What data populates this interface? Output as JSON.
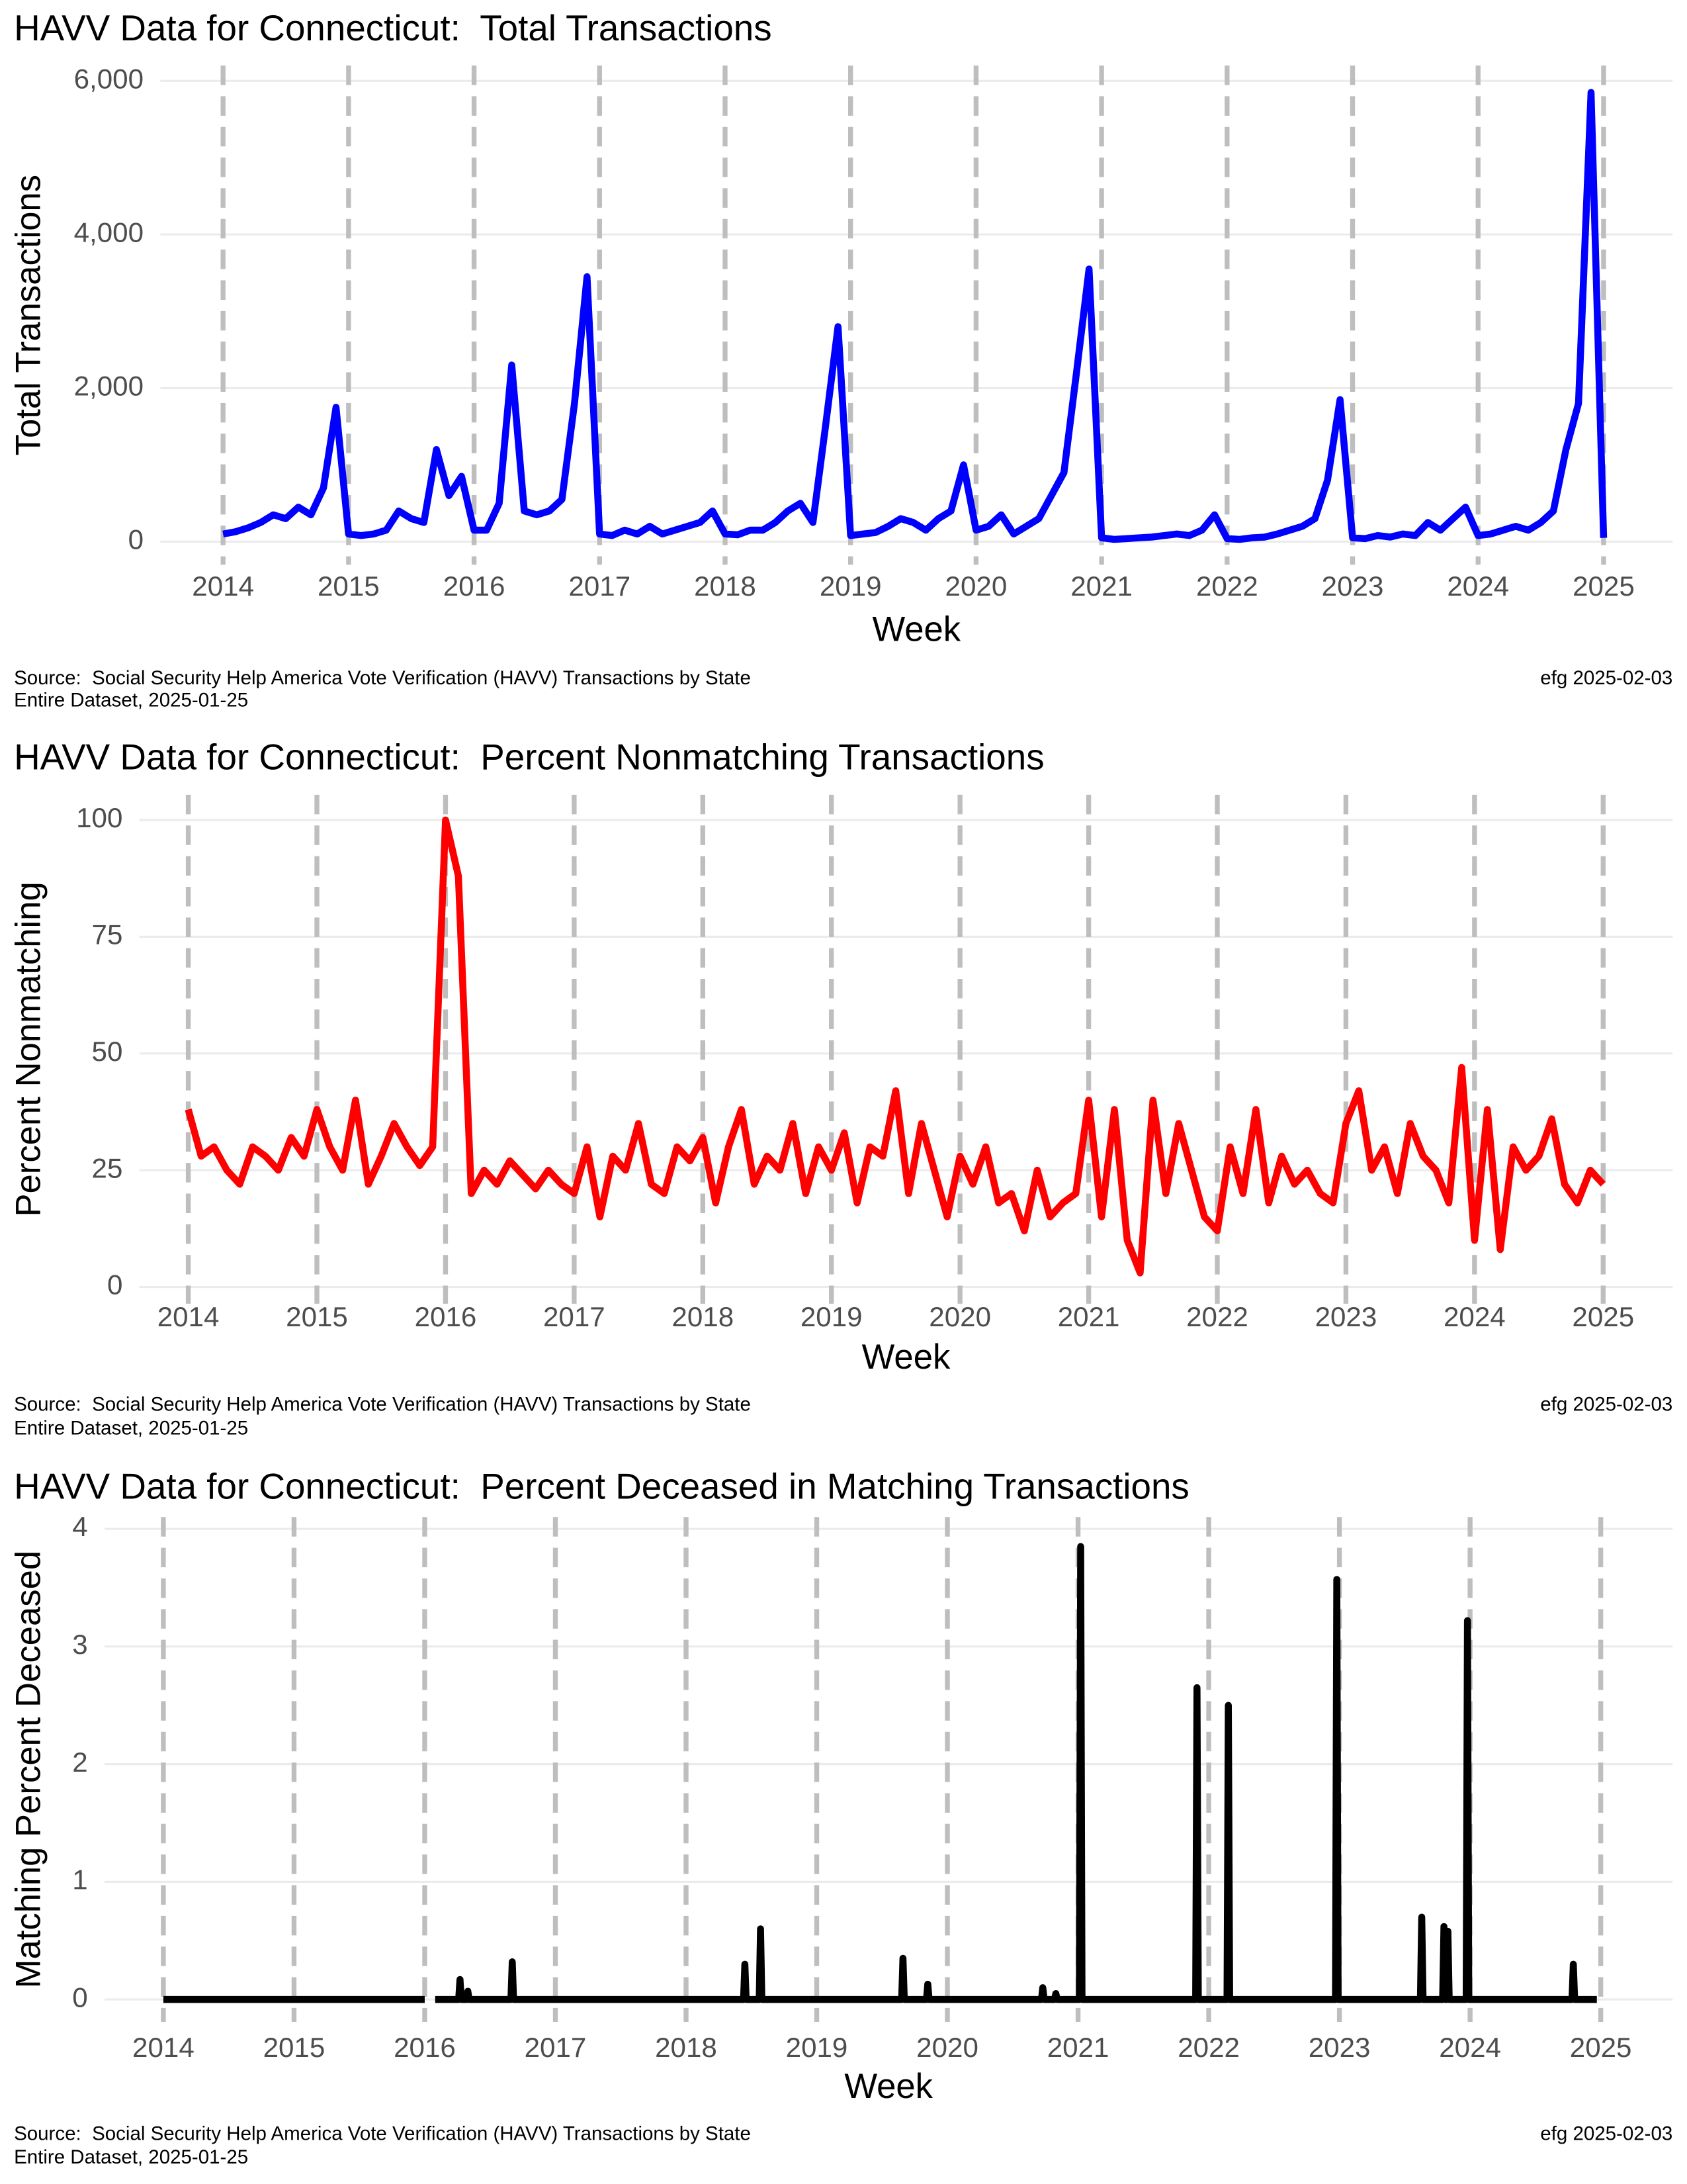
{
  "chart_data": [
    {
      "type": "line",
      "title": "HAVV Data for Connecticut:  Total Transactions",
      "x_label": "Week",
      "y_label": "Total Transactions",
      "caption": [
        "Source:  Social Security Help America Vote Verification (HAVV) Transactions by State",
        "Entire Dataset, 2025-01-25"
      ],
      "stamp": "efg 2025-02-03",
      "color": "#0000ff",
      "grid": true,
      "xlim": [
        2013.5,
        2025.55
      ],
      "xticks": [
        2014,
        2015,
        2016,
        2017,
        2018,
        2019,
        2020,
        2021,
        2022,
        2023,
        2024,
        2025
      ],
      "ylim": [
        -300,
        6200
      ],
      "yticks": [
        0,
        {
          "value": 2000,
          "label": "2,000"
        },
        {
          "value": 4000,
          "label": "4,000"
        },
        {
          "value": 6000,
          "label": "6,000"
        }
      ],
      "x": [
        2014,
        2014.1,
        2014.2,
        2014.3,
        2014.4,
        2014.5,
        2014.6,
        2014.7,
        2014.8,
        2014.9,
        2015,
        2015.1,
        2015.2,
        2015.3,
        2015.4,
        2015.5,
        2015.6,
        2015.7,
        2015.8,
        2015.9,
        2016,
        2016.1,
        2016.2,
        2016.3,
        2016.4,
        2016.5,
        2016.6,
        2016.7,
        2016.8,
        2016.9,
        2017,
        2017.1,
        2017.2,
        2017.3,
        2017.4,
        2017.5,
        2017.6,
        2017.7,
        2017.8,
        2017.9,
        2018,
        2018.1,
        2018.2,
        2018.3,
        2018.4,
        2018.5,
        2018.6,
        2018.7,
        2018.8,
        2018.9,
        2019,
        2019.1,
        2019.2,
        2019.3,
        2019.4,
        2019.5,
        2019.6,
        2019.7,
        2019.8,
        2019.9,
        2020,
        2020.1,
        2020.2,
        2020.3,
        2020.4,
        2020.5,
        2020.6,
        2020.7,
        2020.8,
        2020.9,
        2021,
        2021.1,
        2021.2,
        2021.3,
        2021.4,
        2021.5,
        2021.6,
        2021.7,
        2021.8,
        2021.9,
        2022,
        2022.1,
        2022.2,
        2022.3,
        2022.4,
        2022.5,
        2022.6,
        2022.7,
        2022.8,
        2022.9,
        2023,
        2023.1,
        2023.2,
        2023.3,
        2023.4,
        2023.5,
        2023.6,
        2023.7,
        2023.8,
        2023.9,
        2024,
        2024.1,
        2024.2,
        2024.3,
        2024.4,
        2024.5,
        2024.6,
        2024.7,
        2024.8,
        2024.9,
        2025
      ],
      "values": [
        100,
        130,
        180,
        250,
        350,
        300,
        450,
        350,
        700,
        1750,
        100,
        80,
        100,
        150,
        400,
        300,
        250,
        1200,
        600,
        850,
        150,
        150,
        500,
        2300,
        400,
        350,
        400,
        550,
        1800,
        3450,
        100,
        80,
        150,
        100,
        200,
        100,
        150,
        200,
        250,
        400,
        100,
        90,
        150,
        150,
        250,
        400,
        500,
        250,
        1500,
        2800,
        80,
        100,
        120,
        200,
        300,
        250,
        150,
        300,
        400,
        1000,
        150,
        200,
        350,
        100,
        200,
        300,
        600,
        900,
        2200,
        3550,
        50,
        30,
        40,
        50,
        60,
        80,
        100,
        80,
        150,
        350,
        40,
        30,
        50,
        60,
        100,
        150,
        200,
        300,
        800,
        1850,
        50,
        40,
        80,
        60,
        100,
        80,
        250,
        150,
        300,
        450,
        80,
        100,
        150,
        200,
        150,
        250,
        400,
        1200,
        1800,
        5850,
        50
      ]
    },
    {
      "type": "line",
      "title": "HAVV Data for Connecticut:  Percent Nonmatching Transactions",
      "x_label": "Week",
      "y_label": "Percent Nonmatching",
      "caption": [
        "Source:  Social Security Help America Vote Verification (HAVV) Transactions by State",
        "Entire Dataset, 2025-01-25"
      ],
      "stamp": "efg 2025-02-03",
      "color": "#ff0000",
      "grid": true,
      "xlim": [
        2013.62,
        2025.54
      ],
      "xticks": [
        2014,
        2015,
        2016,
        2017,
        2018,
        2019,
        2020,
        2021,
        2022,
        2023,
        2024,
        2025
      ],
      "ylim": [
        -3.6,
        105.4
      ],
      "yticks": [
        0,
        25,
        50,
        75,
        100
      ],
      "x": [
        2014,
        2014.1,
        2014.2,
        2014.3,
        2014.4,
        2014.5,
        2014.6,
        2014.7,
        2014.8,
        2014.9,
        2015,
        2015.1,
        2015.2,
        2015.3,
        2015.4,
        2015.5,
        2015.6,
        2015.7,
        2015.8,
        2015.9,
        2016,
        2016.1,
        2016.2,
        2016.3,
        2016.4,
        2016.5,
        2016.6,
        2016.7,
        2016.8,
        2016.9,
        2017,
        2017.1,
        2017.2,
        2017.3,
        2017.4,
        2017.5,
        2017.6,
        2017.7,
        2017.8,
        2017.9,
        2018,
        2018.1,
        2018.2,
        2018.3,
        2018.4,
        2018.5,
        2018.6,
        2018.7,
        2018.8,
        2018.9,
        2019,
        2019.1,
        2019.2,
        2019.3,
        2019.4,
        2019.5,
        2019.6,
        2019.7,
        2019.8,
        2019.9,
        2020,
        2020.1,
        2020.2,
        2020.3,
        2020.4,
        2020.5,
        2020.6,
        2020.7,
        2020.8,
        2020.9,
        2021,
        2021.1,
        2021.2,
        2021.3,
        2021.4,
        2021.5,
        2021.6,
        2021.7,
        2021.8,
        2021.9,
        2022,
        2022.1,
        2022.2,
        2022.3,
        2022.4,
        2022.5,
        2022.6,
        2022.7,
        2022.8,
        2022.9,
        2023,
        2023.1,
        2023.2,
        2023.3,
        2023.4,
        2023.5,
        2023.6,
        2023.7,
        2023.8,
        2023.9,
        2024,
        2024.1,
        2024.2,
        2024.3,
        2024.4,
        2024.5,
        2024.6,
        2024.7,
        2024.8,
        2024.9,
        2025
      ],
      "values": [
        38,
        28,
        30,
        25,
        22,
        30,
        28,
        25,
        32,
        28,
        38,
        30,
        25,
        40,
        22,
        28,
        35,
        30,
        26,
        30,
        100,
        88,
        20,
        25,
        22,
        27,
        24,
        21,
        25,
        22,
        20,
        30,
        15,
        28,
        25,
        35,
        22,
        20,
        30,
        27,
        32,
        18,
        30,
        38,
        22,
        28,
        25,
        35,
        20,
        30,
        25,
        33,
        18,
        30,
        28,
        42,
        20,
        35,
        25,
        15,
        28,
        22,
        30,
        18,
        20,
        12,
        25,
        15,
        18,
        20,
        40,
        15,
        38,
        10,
        3,
        40,
        20,
        35,
        25,
        15,
        12,
        30,
        20,
        38,
        18,
        28,
        22,
        25,
        20,
        18,
        35,
        42,
        25,
        30,
        20,
        35,
        28,
        25,
        18,
        47,
        10,
        38,
        8,
        30,
        25,
        28,
        36,
        22,
        18,
        25,
        22
      ]
    },
    {
      "type": "line",
      "title": "HAVV Data for Connecticut:  Percent Deceased in Matching Transactions",
      "x_label": "Week",
      "y_label": "Matching Percent Deceased",
      "caption": [
        "Source:  Social Security Help America Vote Verification (HAVV) Transactions by State",
        "Entire Dataset, 2025-01-25"
      ],
      "stamp": "efg 2025-02-03",
      "color": "#000000",
      "grid": true,
      "xlim": [
        2013.55,
        2025.55
      ],
      "xticks": [
        2014,
        2015,
        2016,
        2017,
        2018,
        2019,
        2020,
        2021,
        2022,
        2023,
        2024,
        2025
      ],
      "ylim": [
        -0.19,
        4.1
      ],
      "yticks": [
        0,
        1,
        2,
        3,
        4
      ],
      "x": [
        2014,
        2016,
        2016.04,
        2016.08,
        2016.26,
        2016.27,
        2016.28,
        2016.32,
        2016.33,
        2016.34,
        2016.66,
        2016.67,
        2016.68,
        2018.44,
        2018.45,
        2018.46,
        2018.56,
        2018.57,
        2018.58,
        2019.65,
        2019.66,
        2019.67,
        2019.84,
        2019.85,
        2019.86,
        2020.72,
        2020.73,
        2020.74,
        2020.82,
        2020.83,
        2020.84,
        2021.01,
        2021.02,
        2021.03,
        2021.9,
        2021.91,
        2021.92,
        2022.14,
        2022.15,
        2022.16,
        2022.97,
        2022.98,
        2022.99,
        2023.62,
        2023.63,
        2023.64,
        2023.79,
        2023.8,
        2023.81,
        2023.82,
        2023.83,
        2023.84,
        2023.97,
        2023.98,
        2023.99,
        2024.78,
        2024.79,
        2024.8,
        2024.97
      ],
      "values": [
        0,
        0,
        null,
        0,
        0,
        0.17,
        0,
        0,
        0.07,
        0,
        0,
        0.32,
        0,
        0,
        0.3,
        0,
        0,
        0.6,
        0,
        0,
        0.35,
        0,
        0,
        0.13,
        0,
        0,
        0.1,
        0,
        0,
        0.05,
        0,
        0,
        3.85,
        0,
        0,
        2.65,
        0,
        0,
        2.5,
        0,
        0,
        3.57,
        0,
        0,
        0.7,
        0,
        0,
        0.62,
        0,
        0,
        0.58,
        0,
        0,
        3.22,
        0,
        0,
        0.3,
        0,
        0
      ]
    }
  ]
}
